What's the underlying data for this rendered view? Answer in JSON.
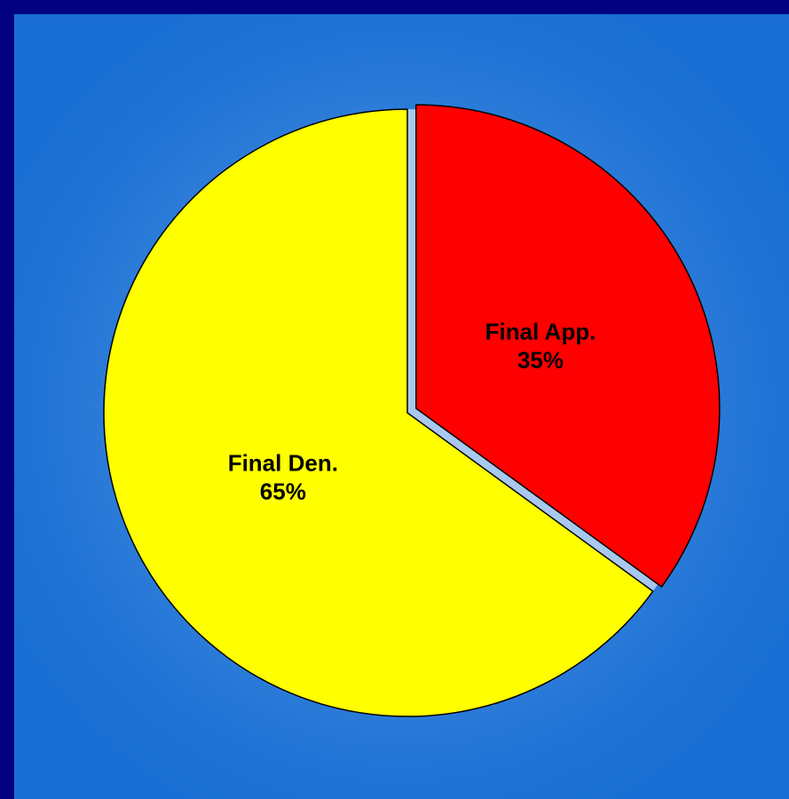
{
  "chart_data": {
    "type": "pie",
    "title": "",
    "slices": [
      {
        "label": "Final App.",
        "value": 35,
        "value_label": "35%",
        "color": "#ff0000",
        "exploded": true
      },
      {
        "label": "Final Den.",
        "value": 65,
        "value_label": "65%",
        "color": "#ffff00",
        "exploded": false
      }
    ],
    "start_angle_deg": 0,
    "direction": "clockwise",
    "legend": "none"
  },
  "colors": {
    "outer_border": "#000080",
    "background": "#1a6fd4",
    "slice_outline": "#000000",
    "explode_gap_highlight": "#a9c8ef"
  }
}
